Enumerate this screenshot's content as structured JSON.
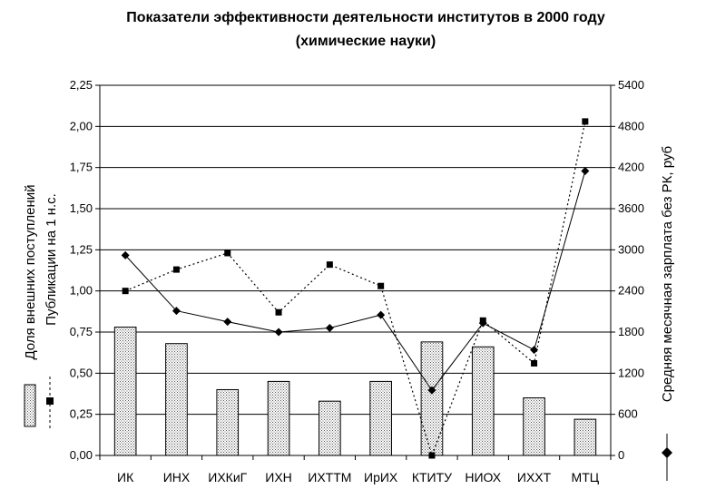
{
  "chart_data": {
    "type": "bar",
    "title": "Показатели эффективности деятельности институтов в 2000 году",
    "subtitle": "(химические науки)",
    "categories": [
      "ИК",
      "ИНХ",
      "ИХКиГ",
      "ИХН",
      "ИХТТМ",
      "ИрИХ",
      "КТИТУ",
      "НИОХ",
      "ИХХТ",
      "МТЦ"
    ],
    "series": [
      {
        "name": "Публикации на 1 н.с.",
        "kind": "bar",
        "axis": "left",
        "values": [
          0.78,
          0.68,
          0.4,
          0.45,
          0.33,
          0.45,
          0.69,
          0.66,
          0.35,
          0.22
        ]
      },
      {
        "name": "Доля внешних поступлений",
        "kind": "line-dotted",
        "marker": "square",
        "axis": "left",
        "values": [
          1.0,
          1.13,
          1.23,
          0.87,
          1.16,
          1.03,
          0.0,
          0.82,
          0.56,
          2.03
        ]
      },
      {
        "name": "Средняя месячная зарплата без РК, руб",
        "kind": "line-solid",
        "marker": "diamond",
        "axis": "right",
        "values": [
          2920,
          2110,
          1950,
          1800,
          1860,
          2050,
          950,
          1930,
          1540,
          4150
        ]
      }
    ],
    "ylabel_left_1": "Доля внешних поступлений",
    "ylabel_left_2": "Публикации на 1 н.с.",
    "ylabel_right": "Средняя месячная зарплата без РК, руб",
    "ylim_left": [
      0,
      2.25
    ],
    "ylim_right": [
      0,
      5400
    ],
    "yticks_left": [
      "0,00",
      "0,25",
      "0,50",
      "0,75",
      "1,00",
      "1,25",
      "1,50",
      "1,75",
      "2,00",
      "2,25"
    ],
    "yticks_right": [
      "0",
      "600",
      "1200",
      "1800",
      "2400",
      "3000",
      "3600",
      "4200",
      "4800",
      "5400"
    ],
    "grid": true
  }
}
